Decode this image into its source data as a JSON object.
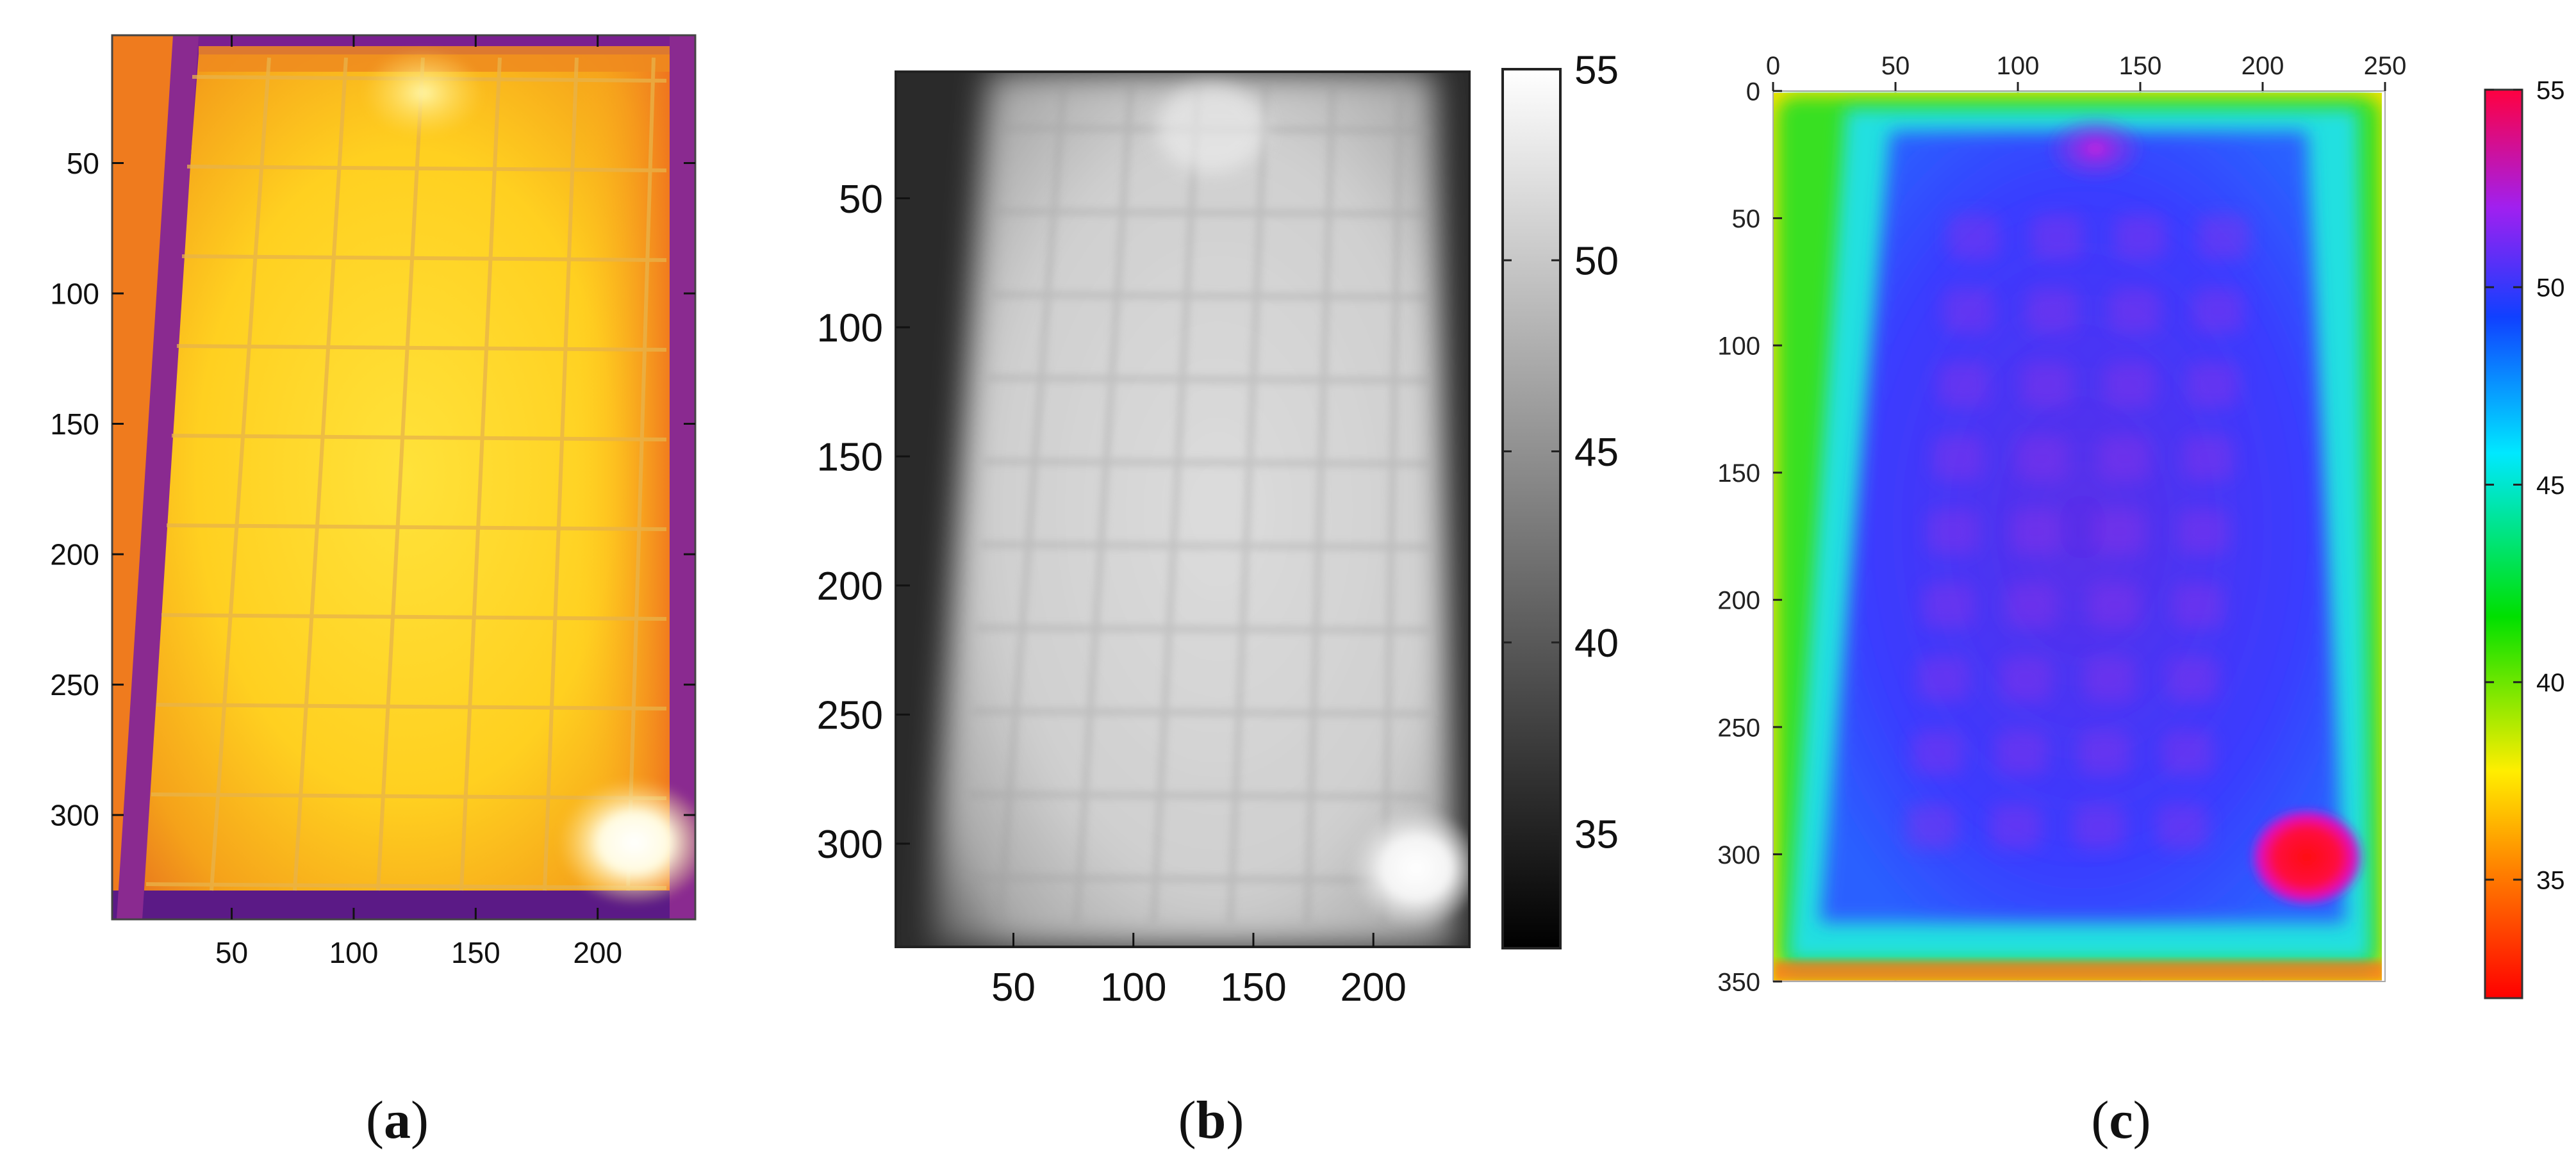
{
  "chart_data": [
    {
      "type": "heatmap",
      "panel_label": "a",
      "colormap": "inferno-like (purple / orange / yellow)",
      "colorbar": false,
      "grid": false,
      "x_ticks": [
        50,
        100,
        150,
        200
      ],
      "y_ticks": [
        50,
        100,
        150,
        200,
        250,
        300
      ],
      "xlim": [
        1,
        240
      ],
      "ylim": [
        1,
        340
      ],
      "y_axis_direction": "down",
      "tick_position": "bottom-left, ticks on all four sides",
      "hotspots": [
        {
          "x": 212,
          "y": 310,
          "level": "highest"
        },
        {
          "x": 130,
          "y": 22,
          "level": "high"
        }
      ]
    },
    {
      "type": "heatmap",
      "panel_label": "b",
      "colormap": "gray",
      "colorbar": true,
      "colorbar_ticks": [
        35,
        40,
        45,
        50,
        55
      ],
      "colorbar_range": [
        32,
        55
      ],
      "grid": false,
      "x_ticks": [
        50,
        100,
        150,
        200
      ],
      "y_ticks": [
        50,
        100,
        150,
        200,
        250,
        300
      ],
      "xlim": [
        1,
        240
      ],
      "ylim": [
        1,
        340
      ],
      "y_axis_direction": "down",
      "hotspots": [
        {
          "x": 210,
          "y": 308,
          "value": 55
        },
        {
          "x": 130,
          "y": 22,
          "value": 50
        }
      ]
    },
    {
      "type": "heatmap",
      "panel_label": "c",
      "colormap": "hsv-like (red at 32 through yellow, green, cyan, blue to magenta/red at 55)",
      "colorbar": true,
      "colorbar_ticks": [
        35,
        40,
        45,
        50,
        55
      ],
      "colorbar_range": [
        32,
        55
      ],
      "grid": true,
      "x_ticks": [
        0,
        50,
        100,
        150,
        200,
        250
      ],
      "y_ticks": [
        0,
        50,
        100,
        150,
        200,
        250,
        300,
        350
      ],
      "xlim": [
        0,
        250
      ],
      "ylim": [
        0,
        350
      ],
      "x_axis_position": "top",
      "y_axis_direction": "down",
      "hotspots": [
        {
          "x": 210,
          "y": 310,
          "value": 55
        },
        {
          "x": 130,
          "y": 22,
          "value": 50
        }
      ]
    }
  ],
  "captions": {
    "a": {
      "open": "(",
      "letter": "a",
      "close": ")"
    },
    "b": {
      "open": "(",
      "letter": "b",
      "close": ")"
    },
    "c": {
      "open": "(",
      "letter": "c",
      "close": ")"
    }
  },
  "colors": {
    "a_edge": "#7a1f8f",
    "a_mid": "#f08a1c",
    "a_core": "#ffd21e",
    "b_dark": "#1a1a1a",
    "b_light": "#d9d9d9",
    "c_edge_red": "#ff2020",
    "c_yellow": "#f4e000",
    "c_green": "#20d020",
    "c_cyan": "#20e0e0",
    "c_blue": "#2a3cff",
    "c_purple": "#8030e0"
  }
}
